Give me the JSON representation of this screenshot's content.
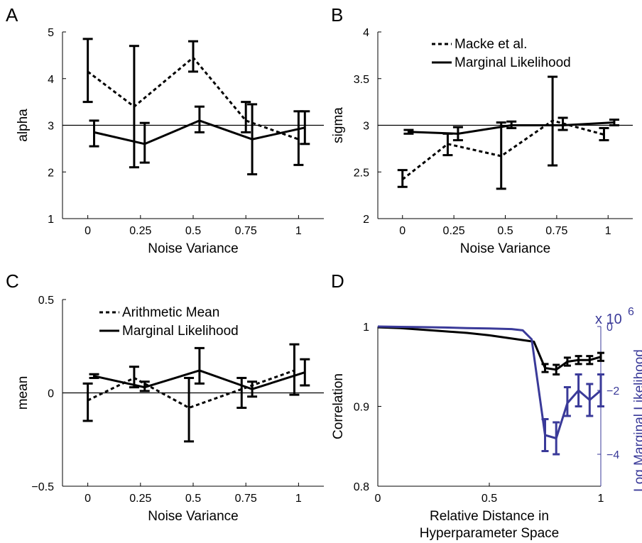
{
  "colors": {
    "primary": "#000000",
    "secondary": "#3a3a99",
    "reference": "#000000"
  },
  "chart_data": [
    {
      "panel": "A",
      "type": "line",
      "xlabel": "Noise Variance",
      "ylabel": "alpha",
      "xlim": [
        -0.12,
        1.12
      ],
      "ylim": [
        1,
        5
      ],
      "xticks": [
        0,
        0.25,
        0.5,
        0.75,
        1
      ],
      "xticklabels": [
        "0",
        "0.25",
        "0.5",
        "0.75",
        "1"
      ],
      "yticks": [
        1,
        2,
        3,
        4,
        5
      ],
      "yticklabels": [
        "1",
        "2",
        "3",
        "4",
        "5"
      ],
      "reference_line": 3,
      "legend": [],
      "series": [
        {
          "style": "dashed",
          "x": [
            0,
            0.22,
            0.5,
            0.75,
            1.0
          ],
          "y": [
            4.15,
            3.4,
            4.45,
            3.1,
            2.7
          ],
          "err_low": [
            3.5,
            2.1,
            4.15,
            2.85,
            2.15
          ],
          "err_high": [
            4.85,
            4.7,
            4.8,
            3.5,
            3.3
          ]
        },
        {
          "style": "solid",
          "x": [
            0.03,
            0.27,
            0.53,
            0.78,
            1.03
          ],
          "y": [
            2.85,
            2.6,
            3.1,
            2.7,
            2.95
          ],
          "err_low": [
            2.55,
            2.2,
            2.85,
            1.95,
            2.6
          ],
          "err_high": [
            3.1,
            3.05,
            3.4,
            3.45,
            3.3
          ]
        }
      ]
    },
    {
      "panel": "B",
      "type": "line",
      "xlabel": "Noise Variance",
      "ylabel": "sigma",
      "xlim": [
        -0.12,
        1.12
      ],
      "ylim": [
        2,
        4
      ],
      "xticks": [
        0,
        0.25,
        0.5,
        0.75,
        1
      ],
      "xticklabels": [
        "0",
        "0.25",
        "0.5",
        "0.75",
        "1"
      ],
      "yticks": [
        2,
        2.5,
        3,
        3.5,
        4
      ],
      "yticklabels": [
        "2",
        "2.5",
        "3",
        "3.5",
        "4"
      ],
      "reference_line": 3,
      "legend": [
        "Macke et al.",
        "Marginal Likelihood"
      ],
      "series": [
        {
          "name": "Macke et al.",
          "style": "dashed",
          "x": [
            0,
            0.22,
            0.48,
            0.73,
            0.98
          ],
          "y": [
            2.42,
            2.8,
            2.67,
            3.05,
            2.9
          ],
          "err_low": [
            2.34,
            2.68,
            2.32,
            2.57,
            2.84
          ],
          "err_high": [
            2.52,
            2.91,
            3.03,
            3.52,
            2.97
          ]
        },
        {
          "name": "Marginal Likelihood",
          "style": "solid",
          "x": [
            0.03,
            0.27,
            0.53,
            0.78,
            1.03
          ],
          "y": [
            2.93,
            2.91,
            3.0,
            3.0,
            3.03
          ],
          "err_low": [
            2.91,
            2.84,
            2.97,
            2.95,
            3.0
          ],
          "err_high": [
            2.95,
            2.98,
            3.04,
            3.08,
            3.06
          ]
        }
      ]
    },
    {
      "panel": "C",
      "type": "line",
      "xlabel": "Noise Variance",
      "ylabel": "mean",
      "xlim": [
        -0.12,
        1.12
      ],
      "ylim": [
        -0.5,
        0.5
      ],
      "xticks": [
        0,
        0.25,
        0.5,
        0.75,
        1
      ],
      "xticklabels": [
        "0",
        "0.25",
        "0.5",
        "0.75",
        "1"
      ],
      "yticks": [
        -0.5,
        0,
        0.5
      ],
      "yticklabels": [
        "−0.5",
        "0",
        "0.5"
      ],
      "reference_line": 0,
      "legend": [
        "Arithmetic Mean",
        "Marginal Likelihood"
      ],
      "series": [
        {
          "name": "Arithmetic Mean",
          "style": "dashed",
          "x": [
            0,
            0.22,
            0.48,
            0.73,
            0.98
          ],
          "y": [
            -0.04,
            0.08,
            -0.08,
            0.02,
            0.12
          ],
          "err_low": [
            -0.15,
            0.03,
            -0.26,
            -0.08,
            -0.01
          ],
          "err_high": [
            0.05,
            0.14,
            0.08,
            0.08,
            0.26
          ]
        },
        {
          "name": "Marginal Likelihood",
          "style": "solid",
          "x": [
            0.03,
            0.27,
            0.53,
            0.78,
            1.03
          ],
          "y": [
            0.09,
            0.03,
            0.12,
            0.02,
            0.11
          ],
          "err_low": [
            0.08,
            0.01,
            0.05,
            -0.02,
            0.04
          ],
          "err_high": [
            0.1,
            0.06,
            0.24,
            0.06,
            0.18
          ]
        }
      ]
    },
    {
      "panel": "D",
      "type": "line",
      "xlabel": "Relative Distance in\nHyperparameter Space",
      "ylabel": "Correlation",
      "ylabel_right": "Log Marginal Likelihood",
      "exponent_label": "x 10",
      "exponent_power": "6",
      "xlim": [
        0,
        1
      ],
      "ylim": [
        0.8,
        1
      ],
      "ylim_right": [
        -5,
        0
      ],
      "xticks": [
        0,
        0.5,
        1
      ],
      "xticklabels": [
        "0",
        "0.5",
        "1"
      ],
      "yticks": [
        0.8,
        0.9,
        1
      ],
      "yticklabels": [
        "0.8",
        "0.9",
        "1"
      ],
      "yticks_right": [
        -4,
        -2,
        0
      ],
      "yticklabels_right": [
        "−4",
        "−2",
        "0"
      ],
      "series": [
        {
          "axis": "left",
          "style": "solid",
          "color": "#000000",
          "x": [
            0,
            0.1,
            0.2,
            0.3,
            0.4,
            0.5,
            0.6,
            0.65,
            0.7,
            0.75,
            0.8,
            0.85,
            0.9,
            0.95,
            1.0
          ],
          "y": [
            0.999,
            0.998,
            0.996,
            0.994,
            0.992,
            0.989,
            0.985,
            0.983,
            0.981,
            0.948,
            0.946,
            0.956,
            0.958,
            0.958,
            0.962
          ],
          "err_x": [
            0.75,
            0.8,
            0.85,
            0.9,
            0.95,
            1.0
          ],
          "err_low": [
            0.943,
            0.94,
            0.951,
            0.953,
            0.953,
            0.957
          ],
          "err_high": [
            0.953,
            0.952,
            0.961,
            0.963,
            0.963,
            0.967
          ]
        },
        {
          "axis": "right",
          "style": "solid",
          "color": "#3a3a99",
          "x": [
            0,
            0.1,
            0.2,
            0.3,
            0.4,
            0.5,
            0.6,
            0.65,
            0.69,
            0.75,
            0.8,
            0.85,
            0.9,
            0.95,
            1.0
          ],
          "y": [
            0,
            -0.01,
            -0.02,
            -0.03,
            -0.05,
            -0.06,
            -0.08,
            -0.12,
            -0.4,
            -3.4,
            -3.5,
            -2.4,
            -2.0,
            -2.3,
            -2.0
          ],
          "err_x": [
            0.75,
            0.8,
            0.85,
            0.9,
            0.95,
            1.0
          ],
          "err_low": [
            -3.9,
            -4.0,
            -2.8,
            -2.5,
            -2.8,
            -2.5
          ],
          "err_high": [
            -2.9,
            -3.0,
            -1.9,
            -1.5,
            -1.8,
            -1.5
          ]
        }
      ]
    }
  ]
}
